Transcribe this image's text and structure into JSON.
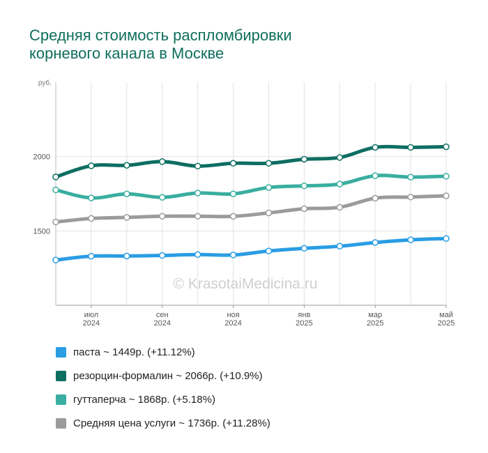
{
  "title_line1": "Средняя стоимость распломбировки",
  "title_line2": "корневого канала в Москве",
  "watermark": "© KrasotaiMedicina.ru",
  "chart_data": {
    "type": "line",
    "title": "Средняя стоимость распломбировки корневого канала в Москве",
    "ylabel": "руб.",
    "ylim": [
      1000,
      2500
    ],
    "yticks": [
      1500,
      2000
    ],
    "x_ticks": [
      {
        "m": "июл",
        "y": "2024"
      },
      {
        "m": "сен",
        "y": "2024"
      },
      {
        "m": "ноя",
        "y": "2024"
      },
      {
        "m": "янв",
        "y": "2025"
      },
      {
        "m": "мар",
        "y": "2025"
      },
      {
        "m": "май",
        "y": "2025"
      }
    ],
    "x": [
      "2024-06",
      "2024-07",
      "2024-08",
      "2024-09",
      "2024-10",
      "2024-11",
      "2024-12",
      "2025-01",
      "2025-02",
      "2025-03",
      "2025-04",
      "2025-05"
    ],
    "grid": true,
    "legend_position": "bottom",
    "series": [
      {
        "name": "паста",
        "color": "#2a9de3",
        "values": [
          1304,
          1330,
          1331,
          1335,
          1341,
          1338,
          1365,
          1383,
          1397,
          1422,
          1440,
          1449
        ],
        "legend": "паста ~ 1449р. (+11.12%)"
      },
      {
        "name": "резорцин-формалин",
        "color": "#0e6e62",
        "values": [
          1863,
          1938,
          1941,
          1966,
          1936,
          1955,
          1955,
          1982,
          1994,
          2062,
          2062,
          2066
        ],
        "legend": "резорцин-формалин ~ 2066р. (+10.9%)"
      },
      {
        "name": "гуттаперча",
        "color": "#3aaea0",
        "values": [
          1776,
          1722,
          1749,
          1726,
          1755,
          1749,
          1792,
          1803,
          1815,
          1871,
          1862,
          1868
        ],
        "legend": "гуттаперча ~ 1868р. (+5.18%)"
      },
      {
        "name": "Средняя цена услуги",
        "color": "#9b9b9b",
        "values": [
          1560,
          1584,
          1591,
          1599,
          1599,
          1598,
          1621,
          1649,
          1659,
          1720,
          1728,
          1736
        ],
        "legend": "Средняя цена услуги ~ 1736р. (+11.28%)"
      }
    ]
  }
}
